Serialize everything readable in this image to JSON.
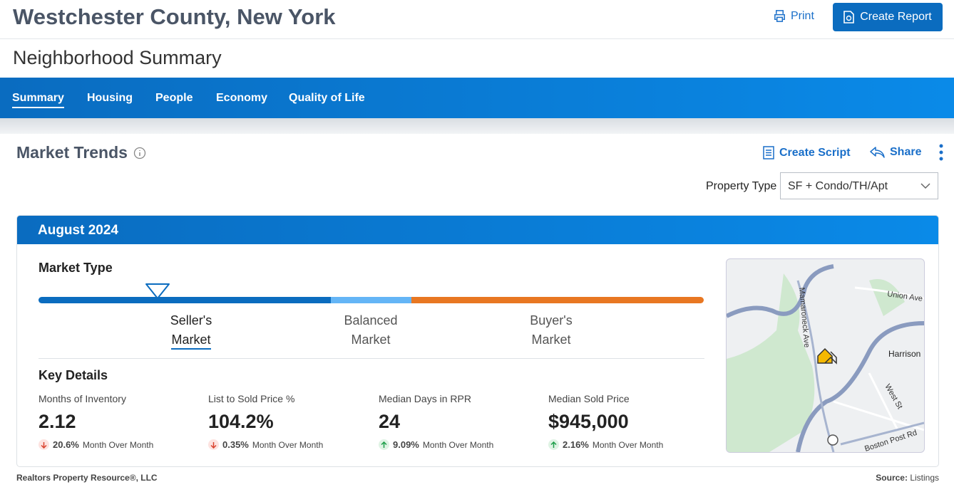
{
  "header": {
    "title": "Westchester County, New York",
    "print": "Print",
    "create_report": "Create Report"
  },
  "page_title": "Neighborhood Summary",
  "tabs": [
    "Summary",
    "Housing",
    "People",
    "Economy",
    "Quality of Life"
  ],
  "section": {
    "title": "Market Trends",
    "create_script": "Create Script",
    "share": "Share",
    "property_type_label": "Property Type",
    "property_type_value": "SF + Condo/TH/Apt"
  },
  "card": {
    "period": "August 2024",
    "market_type_title": "Market Type",
    "market_types": [
      [
        "Seller's",
        "Market"
      ],
      [
        "Balanced",
        "Market"
      ],
      [
        "Buyer's",
        "Market"
      ]
    ],
    "key_details_title": "Key Details",
    "details": [
      {
        "label": "Months of Inventory",
        "value": "2.12",
        "change": "20.6%",
        "change_label": "Month Over Month",
        "direction": "down"
      },
      {
        "label": "List to Sold Price %",
        "value": "104.2%",
        "change": "0.35%",
        "change_label": "Month Over Month",
        "direction": "down"
      },
      {
        "label": "Median Days in RPR",
        "value": "24",
        "change": "9.09%",
        "change_label": "Month Over Month",
        "direction": "up"
      },
      {
        "label": "Median Sold Price",
        "value": "$945,000",
        "change": "2.16%",
        "change_label": "Month Over Month",
        "direction": "up"
      }
    ]
  },
  "map": {
    "labels": [
      "Union Ave",
      "Mamaroneck Ave",
      "Harrison",
      "West St",
      "Boston Post Rd"
    ]
  },
  "footer": {
    "left": "Realtors Property Resource®, LLC",
    "source_label": "Source:",
    "source": "Listings"
  }
}
